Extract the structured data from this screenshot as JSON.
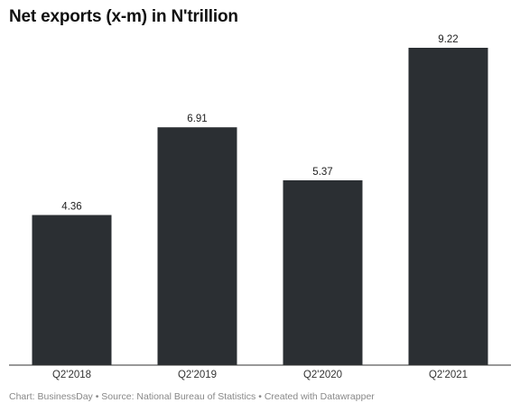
{
  "chart_data": {
    "type": "bar",
    "title": "Net exports (x-m) in N'trillion",
    "categories": [
      "Q2'2018",
      "Q2'2019",
      "Q2'2020",
      "Q2'2021"
    ],
    "values": [
      4.36,
      6.91,
      5.37,
      9.22
    ],
    "value_labels": [
      "4.36",
      "6.91",
      "5.37",
      "9.22"
    ],
    "xlabel": "",
    "ylabel": "",
    "ylim": [
      0,
      9.22
    ],
    "grid": false,
    "legend": "none",
    "bar_color": "#2b2f33",
    "axis_color": "#333333"
  },
  "footer": "Chart: BusinessDay • Source: National Bureau of Statistics • Created with Datawrapper"
}
